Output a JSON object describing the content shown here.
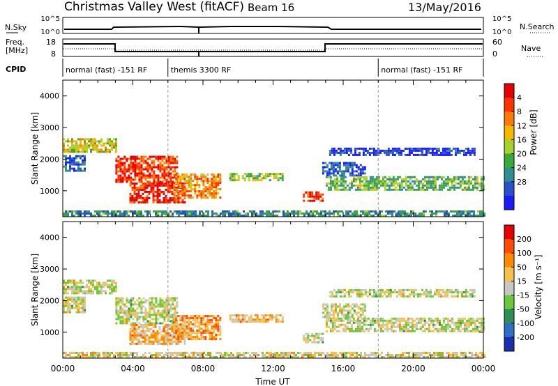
{
  "header": {
    "title": "Christmas Valley West (fitACF)",
    "beam": "Beam 16",
    "date": "13/May/2016"
  },
  "top_panels": {
    "nsky_label": "N.Sky",
    "nsearch_label": "N.Search",
    "nsky_ticks": [
      "10^5",
      "10^0"
    ],
    "nsearch_ticks": [
      "10^5",
      "10^0"
    ],
    "freq_label_1": "Freq.",
    "freq_label_2": "[MHz]",
    "freq_ticks": [
      "18",
      "8"
    ],
    "nave_label": "Nave",
    "nave_ticks": [
      "60",
      "0"
    ],
    "cpid_label": "CPID",
    "cpid_segments": [
      {
        "label": "normal (fast) -151 RF",
        "start_h": 0,
        "end_h": 6
      },
      {
        "label": "themis 3300 RF",
        "start_h": 6,
        "end_h": 18
      },
      {
        "label": "normal (fast) -151 RF",
        "start_h": 18,
        "end_h": 24
      }
    ]
  },
  "chart_data": [
    {
      "type": "heatmap",
      "title": "",
      "ylabel": "Slant Range [km]",
      "xlabel": "",
      "ylim": [
        180,
        4500
      ],
      "xlim": [
        0,
        24
      ],
      "y_ticks": [
        "1000",
        "2000",
        "3000",
        "4000"
      ],
      "x_ticks": [],
      "colorbar": {
        "label": "Power [dB]",
        "ticks": [
          "4",
          "8",
          "12",
          "16",
          "20",
          "24",
          "28"
        ],
        "colors": [
          "#1a1aff",
          "#2a52c8",
          "#2e8e92",
          "#3aa83a",
          "#a8d12e",
          "#f5b800",
          "#ff7a00",
          "#ff3300",
          "#e60000"
        ]
      },
      "echo_regions": [
        {
          "t0": 0.0,
          "t1": 3.0,
          "r0": 2200,
          "r1": 2650,
          "level": 0.55
        },
        {
          "t0": 0.0,
          "t1": 1.2,
          "r0": 1600,
          "r1": 2100,
          "level": 0.2
        },
        {
          "t0": 3.0,
          "t1": 6.5,
          "r0": 1250,
          "r1": 2050,
          "level": 0.85
        },
        {
          "t0": 3.8,
          "t1": 7.0,
          "r0": 600,
          "r1": 1250,
          "level": 0.9
        },
        {
          "t0": 6.3,
          "t1": 9.0,
          "r0": 750,
          "r1": 1500,
          "level": 0.7
        },
        {
          "t0": 9.5,
          "t1": 12.5,
          "r0": 1300,
          "r1": 1500,
          "level": 0.45
        },
        {
          "t0": 13.7,
          "t1": 14.8,
          "r0": 650,
          "r1": 950,
          "level": 0.88
        },
        {
          "t0": 14.8,
          "t1": 17.3,
          "r0": 1450,
          "r1": 1850,
          "level": 0.15
        },
        {
          "t0": 15.0,
          "t1": 24.0,
          "r0": 1000,
          "r1": 1450,
          "level": 0.4
        },
        {
          "t0": 15.2,
          "t1": 23.5,
          "r0": 2100,
          "r1": 2350,
          "level": 0.1
        },
        {
          "t0": 0.0,
          "t1": 24.0,
          "r0": 180,
          "r1": 350,
          "level": 0.3
        }
      ]
    },
    {
      "type": "heatmap",
      "title": "",
      "ylabel": "Slant Range [km]",
      "xlabel": "Time UT",
      "ylim": [
        180,
        4500
      ],
      "xlim": [
        0,
        24
      ],
      "y_ticks": [
        "1000",
        "2000",
        "3000",
        "4000"
      ],
      "x_ticks": [
        "00:00",
        "04:00",
        "08:00",
        "12:00",
        "16:00",
        "20:00",
        "00:00"
      ],
      "colorbar": {
        "label": "Velocity [m s⁻¹]",
        "ticks": [
          "200",
          "100",
          "50",
          "15",
          "-15",
          "-50",
          "-100",
          "-200"
        ],
        "colors": [
          "#1a2fb0",
          "#2e6fc8",
          "#2e8e58",
          "#6ac83a",
          "#c8c8c0",
          "#f5c14a",
          "#ff8a00",
          "#ff4a00",
          "#e60000"
        ]
      },
      "echo_regions": [
        {
          "t0": 0.0,
          "t1": 3.0,
          "r0": 2200,
          "r1": 2650,
          "level": 0.5
        },
        {
          "t0": 0.0,
          "t1": 1.2,
          "r0": 1600,
          "r1": 2100,
          "level": 0.5
        },
        {
          "t0": 3.0,
          "t1": 6.5,
          "r0": 1250,
          "r1": 2050,
          "level": 0.5
        },
        {
          "t0": 3.8,
          "t1": 7.0,
          "r0": 600,
          "r1": 1250,
          "level": 0.62
        },
        {
          "t0": 6.3,
          "t1": 9.0,
          "r0": 750,
          "r1": 1500,
          "level": 0.7
        },
        {
          "t0": 9.5,
          "t1": 12.5,
          "r0": 1300,
          "r1": 1500,
          "level": 0.62
        },
        {
          "t0": 13.7,
          "t1": 14.8,
          "r0": 650,
          "r1": 950,
          "level": 0.5
        },
        {
          "t0": 14.8,
          "t1": 17.3,
          "r0": 1450,
          "r1": 1850,
          "level": 0.5
        },
        {
          "t0": 15.0,
          "t1": 24.0,
          "r0": 1000,
          "r1": 1450,
          "level": 0.5
        },
        {
          "t0": 15.2,
          "t1": 23.5,
          "r0": 2100,
          "r1": 2350,
          "level": 0.5
        },
        {
          "t0": 0.0,
          "t1": 24.0,
          "r0": 180,
          "r1": 350,
          "level": 0.55
        }
      ]
    }
  ]
}
